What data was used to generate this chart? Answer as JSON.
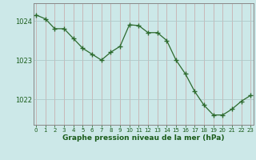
{
  "x": [
    0,
    1,
    2,
    3,
    4,
    5,
    6,
    7,
    8,
    9,
    10,
    11,
    12,
    13,
    14,
    15,
    16,
    17,
    18,
    19,
    20,
    21,
    22,
    23
  ],
  "y": [
    1024.15,
    1024.05,
    1023.8,
    1023.8,
    1023.55,
    1023.3,
    1023.15,
    1023.0,
    1023.2,
    1023.35,
    1023.9,
    1023.88,
    1023.7,
    1023.7,
    1023.5,
    1023.0,
    1022.65,
    1022.2,
    1021.85,
    1021.6,
    1021.6,
    1021.75,
    1021.95,
    1022.1
  ],
  "line_color": "#2d6a2d",
  "marker_color": "#2d6a2d",
  "bg_color": "#cce8e8",
  "grid_color_v": "#c8b0b0",
  "grid_color_h": "#b0c8c8",
  "xlabel": "Graphe pression niveau de la mer (hPa)",
  "xlabel_color": "#1a5c1a",
  "tick_color": "#1a5c1a",
  "ylim": [
    1021.35,
    1024.45
  ],
  "yticks": [
    1022,
    1023,
    1024
  ],
  "xticks": [
    0,
    1,
    2,
    3,
    4,
    5,
    6,
    7,
    8,
    9,
    10,
    11,
    12,
    13,
    14,
    15,
    16,
    17,
    18,
    19,
    20,
    21,
    22,
    23
  ],
  "border_color": "#888888"
}
